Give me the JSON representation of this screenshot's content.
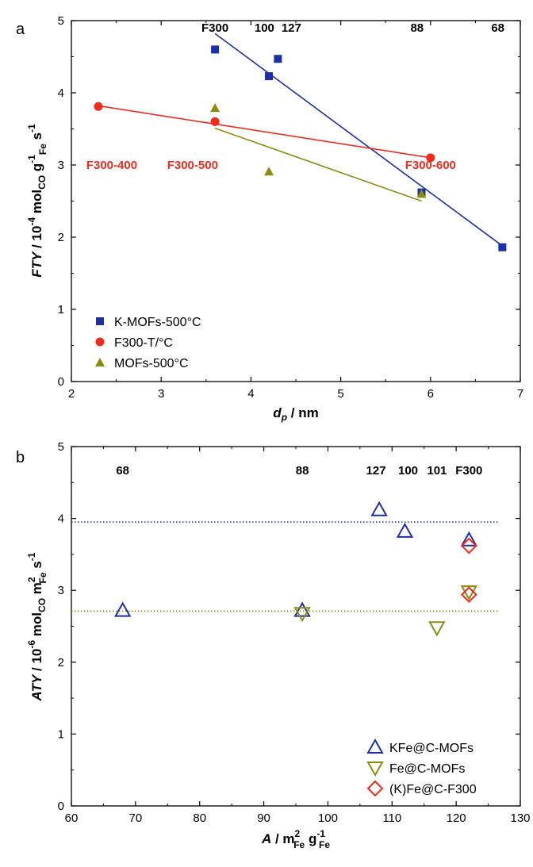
{
  "chart_data": [
    {
      "type": "scatter",
      "panel_label": "a",
      "ylabel": {
        "main": "FTY",
        "sep": " / 10",
        "exp": "-4",
        "mol": " mol",
        "molsub": "CO",
        "g": " g",
        "gexp": "-1",
        "gsub": "Fe",
        "s": " s",
        "sexp": "-1"
      },
      "xlabel": {
        "main": "d",
        "sub": "p",
        "rest": " / nm"
      },
      "xlim": [
        2,
        7
      ],
      "ylim": [
        0,
        5
      ],
      "xticks": [
        "2",
        "3",
        "4",
        "5",
        "6",
        "7"
      ],
      "yticks": [
        "0",
        "1",
        "2",
        "3",
        "4",
        "5"
      ],
      "grid": false,
      "legend_position": "bottom-left",
      "series": [
        {
          "name": "K-MOFs-500°C",
          "marker": "square",
          "color": "#1c2fa8",
          "points": [
            [
              3.6,
              4.6
            ],
            [
              4.2,
              4.23
            ],
            [
              4.3,
              4.47
            ],
            [
              5.9,
              2.62
            ],
            [
              6.8,
              1.86
            ]
          ],
          "fit_line": [
            [
              3.6,
              4.82
            ],
            [
              6.8,
              1.88
            ]
          ]
        },
        {
          "name": "F300-T/°C",
          "marker": "circle",
          "color": "#f02b1c",
          "points": [
            [
              2.3,
              3.81
            ],
            [
              3.6,
              3.6
            ],
            [
              6.0,
              3.1
            ]
          ],
          "fit_line": [
            [
              2.3,
              3.82
            ],
            [
              6.0,
              3.1
            ]
          ]
        },
        {
          "name": "MOFs-500°C",
          "marker": "triangle-up",
          "color": "#8c8b10",
          "points": [
            [
              3.6,
              3.79
            ],
            [
              4.2,
              2.91
            ],
            [
              5.9,
              2.6
            ]
          ],
          "fit_line": [
            [
              3.6,
              3.51
            ],
            [
              5.9,
              2.5
            ]
          ]
        }
      ],
      "annotations_top": [
        {
          "text": "F300",
          "x": 3.6
        },
        {
          "text": "100",
          "x": 4.15
        },
        {
          "text": "127",
          "x": 4.45
        },
        {
          "text": "88",
          "x": 5.85
        },
        {
          "text": "68",
          "x": 6.75
        }
      ],
      "annotations_red": [
        {
          "text": "F300-400",
          "x": 2.45,
          "y": 3.0
        },
        {
          "text": "F300-500",
          "x": 3.35,
          "y": 3.0
        },
        {
          "text": "F300-600",
          "x": 6.0,
          "y": 3.0
        }
      ]
    },
    {
      "type": "scatter",
      "panel_label": "b",
      "ylabel": {
        "main": "ATY",
        "sep": " / 10",
        "exp": "-6",
        "mol": " mol",
        "molsub": "CO",
        "m": " m",
        "mexp": "2",
        "msub": "Fe",
        "s": " s",
        "sexp": "-1"
      },
      "xlabel": {
        "main": "A",
        "sep": " / m",
        "exp": "2",
        "sub": "Fe",
        "g": " g",
        "gexp": "-1",
        "gsub": "Fe"
      },
      "xlim": [
        60,
        130
      ],
      "ylim": [
        0,
        5
      ],
      "xticks": [
        "60",
        "70",
        "80",
        "90",
        "100",
        "110",
        "120",
        "130"
      ],
      "yticks": [
        "0",
        "1",
        "2",
        "3",
        "4",
        "5"
      ],
      "grid": false,
      "legend_position": "bottom-right",
      "series": [
        {
          "name": "KFe@C-MOFs",
          "marker": "triangle-up-open",
          "color": "#1c2fa8",
          "points": [
            [
              68,
              2.72
            ],
            [
              96,
              2.72
            ],
            [
              108,
              4.12
            ],
            [
              112,
              3.82
            ],
            [
              122,
              3.7
            ]
          ]
        },
        {
          "name": "Fe@C-MOFs",
          "marker": "triangle-down-open",
          "color": "#8c8b10",
          "points": [
            [
              96,
              2.68
            ],
            [
              117,
              2.48
            ],
            [
              122,
              2.98
            ]
          ]
        },
        {
          "name": "(K)Fe@C-F300",
          "marker": "diamond-open",
          "color": "#f02b1c",
          "points": [
            [
              122,
              3.62
            ],
            [
              122,
              2.94
            ]
          ]
        }
      ],
      "reference_lines": [
        {
          "y": 3.95,
          "color": "#1c2fa8",
          "style": "dotted"
        },
        {
          "y": 2.71,
          "color": "#8c8b10",
          "style": "dotted"
        }
      ],
      "annotations_top": [
        {
          "text": "68",
          "x": 68
        },
        {
          "text": "88",
          "x": 96
        },
        {
          "text": "127",
          "x": 107.5
        },
        {
          "text": "100",
          "x": 112.5
        },
        {
          "text": "101",
          "x": 117
        },
        {
          "text": "F300",
          "x": 122
        }
      ]
    }
  ]
}
